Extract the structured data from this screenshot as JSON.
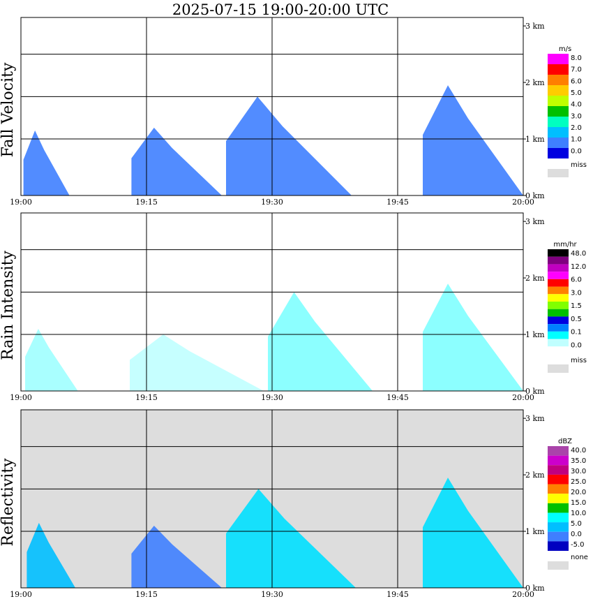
{
  "title": "2025-07-15   19:00-20:00 UTC",
  "chart_data": [
    {
      "type": "heatmap",
      "ylabel": "Fall Velocity",
      "x_ticks": [
        "19:00",
        "19:15",
        "19:30",
        "19:45",
        "20:00"
      ],
      "y_ticks": [
        "0 km",
        "1 km",
        "2 km",
        "3 km"
      ],
      "xlim": [
        "19:00",
        "20:00"
      ],
      "ylim_km": [
        0,
        3.15
      ],
      "grid": true,
      "legend_unit": "m/s",
      "legend_labels": [
        "8.0",
        "7.0",
        "6.0",
        "5.0",
        "4.0",
        "3.0",
        "2.0",
        "1.0",
        "0.0",
        "miss"
      ],
      "legend_colors": [
        "#ff00ff",
        "#ff0000",
        "#ff7f00",
        "#ffcc00",
        "#bfff00",
        "#00c000",
        "#00ffc0",
        "#00bfff",
        "#3f7fff",
        "#0000e0",
        "#dddddd"
      ],
      "data_shapes": [
        {
          "kind": "fan",
          "start_min": 0.3,
          "end_min": 5.8,
          "top_km": 1.15,
          "color": "#3f7fff"
        },
        {
          "kind": "fan",
          "start_min": 13.2,
          "end_min": 24.0,
          "top_km": 1.2,
          "color": "#3f7fff"
        },
        {
          "kind": "fan",
          "start_min": 24.5,
          "end_min": 39.5,
          "top_km": 1.75,
          "color": "#3f7fff"
        },
        {
          "kind": "fan",
          "start_min": 48.0,
          "end_min": 60.0,
          "top_km": 1.95,
          "color": "#3f7fff"
        }
      ]
    },
    {
      "type": "heatmap",
      "ylabel": "Rain Intensity",
      "x_ticks": [
        "19:00",
        "19:15",
        "19:30",
        "19:45",
        "20:00"
      ],
      "y_ticks": [
        "0 km",
        "1 km",
        "2 km",
        "3 km"
      ],
      "xlim": [
        "19:00",
        "20:00"
      ],
      "ylim_km": [
        0,
        3.15
      ],
      "grid": true,
      "legend_unit": "mm/hr",
      "legend_labels": [
        "48.0",
        "12.0",
        "6.0",
        "3.0",
        "1.5",
        "0.5",
        "0.1",
        "0.0",
        "miss"
      ],
      "legend_colors": [
        "#000000",
        "#800080",
        "#c000c0",
        "#ff00ff",
        "#ff0000",
        "#ff8000",
        "#ffff00",
        "#80ff00",
        "#00c000",
        "#0000e0",
        "#0080ff",
        "#00ffff",
        "#c0ffff",
        "#ffffff",
        "#dddddd"
      ],
      "data_shapes": [
        {
          "kind": "fan",
          "start_min": 0.5,
          "end_min": 6.8,
          "top_km": 1.1,
          "color": "#a0ffff"
        },
        {
          "kind": "fan",
          "start_min": 13.0,
          "end_min": 29.0,
          "top_km": 1.0,
          "color": "#c0ffff"
        },
        {
          "kind": "fan",
          "start_min": 29.5,
          "end_min": 42.0,
          "top_km": 1.75,
          "color": "#80ffff"
        },
        {
          "kind": "fan",
          "start_min": 48.0,
          "end_min": 60.0,
          "top_km": 1.9,
          "color": "#80ffff"
        }
      ]
    },
    {
      "type": "heatmap",
      "ylabel": "Reflectivity",
      "x_ticks": [
        "19:00",
        "19:15",
        "19:30",
        "19:45",
        "20:00"
      ],
      "y_ticks": [
        "0 km",
        "1 km",
        "2 km",
        "3 km"
      ],
      "xlim": [
        "19:00",
        "20:00"
      ],
      "ylim_km": [
        0,
        3.15
      ],
      "grid": true,
      "background_color": "#dddddd",
      "legend_unit": "dBZ",
      "legend_labels": [
        "40.0",
        "35.0",
        "30.0",
        "25.0",
        "20.0",
        "15.0",
        "10.0",
        "5.0",
        "0.0",
        "-5.0",
        "none"
      ],
      "legend_colors": [
        "#aa44aa",
        "#cc00cc",
        "#c00080",
        "#ff0000",
        "#ff7f00",
        "#ffff00",
        "#00c000",
        "#00ffff",
        "#00bfff",
        "#3f7fff",
        "#0000c0",
        "#dddddd"
      ],
      "data_shapes": [
        {
          "kind": "fan",
          "start_min": 0.7,
          "end_min": 6.5,
          "top_km": 1.15,
          "color": "#00bfff"
        },
        {
          "kind": "fan",
          "start_min": 13.2,
          "end_min": 24.0,
          "top_km": 1.1,
          "color": "#3f7fff"
        },
        {
          "kind": "fan",
          "start_min": 24.5,
          "end_min": 40.0,
          "top_km": 1.75,
          "color": "#00e0ff"
        },
        {
          "kind": "fan",
          "start_min": 48.0,
          "end_min": 60.0,
          "top_km": 1.95,
          "color": "#00e0ff"
        }
      ]
    }
  ]
}
